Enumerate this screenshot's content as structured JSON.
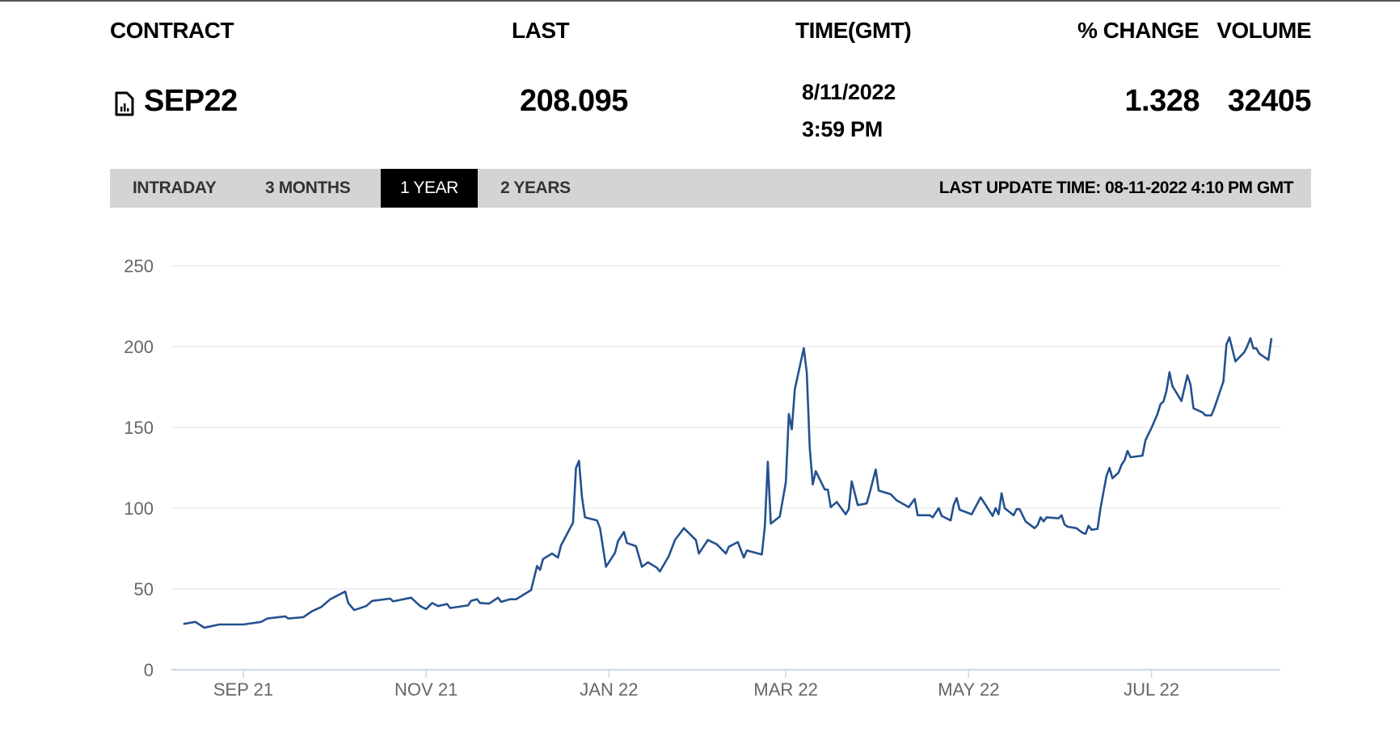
{
  "header": {
    "contract_label": "CONTRACT",
    "last_label": "LAST",
    "time_label": "TIME(GMT)",
    "change_label": "% CHANGE",
    "volume_label": "VOLUME"
  },
  "quote": {
    "contract_icon": "document-chart-icon",
    "contract": "SEP22",
    "last": "208.095",
    "date": "8/11/2022",
    "time": "3:59 PM",
    "change": "1.328",
    "volume": "32405"
  },
  "tabs": [
    {
      "label": "INTRADAY",
      "active": false
    },
    {
      "label": "3 MONTHS",
      "active": false
    },
    {
      "label": "1 YEAR",
      "active": true
    },
    {
      "label": "2 YEARS",
      "active": false
    }
  ],
  "last_update": "LAST UPDATE TIME: 08-11-2022 4:10 PM GMT",
  "colors": {
    "line": "#24518f",
    "grid": "#e6e6e6",
    "axis": "#ccd6eb",
    "tab_bar": "#d4d4d4",
    "tab_active": "#000000"
  },
  "chart_data": {
    "type": "line",
    "title": "",
    "xlabel": "",
    "ylabel": "",
    "grid": true,
    "legend": "none",
    "xlim": [
      "2021-08-08",
      "2022-08-13"
    ],
    "ylim": [
      0,
      250
    ],
    "yticks": [
      0,
      50,
      100,
      150,
      200,
      250
    ],
    "xticks": [
      {
        "date": "2021-09-01",
        "label": "SEP 21"
      },
      {
        "date": "2021-11-01",
        "label": "NOV 21"
      },
      {
        "date": "2022-01-01",
        "label": "JAN 22"
      },
      {
        "date": "2022-03-01",
        "label": "MAR 22"
      },
      {
        "date": "2022-05-01",
        "label": "MAY 22"
      },
      {
        "date": "2022-07-01",
        "label": "JUL 22"
      }
    ],
    "series": [
      {
        "points": [
          [
            "2021-08-12",
            28.3
          ],
          [
            "2021-08-16",
            29.6
          ],
          [
            "2021-08-19",
            26
          ],
          [
            "2021-08-24",
            28
          ],
          [
            "2021-09-01",
            28
          ],
          [
            "2021-09-07",
            29.6
          ],
          [
            "2021-09-09",
            31.7
          ],
          [
            "2021-09-15",
            33
          ],
          [
            "2021-09-16",
            31.7
          ],
          [
            "2021-09-21",
            32.5
          ],
          [
            "2021-09-24",
            36.3
          ],
          [
            "2021-09-27",
            38.8
          ],
          [
            "2021-09-30",
            43.6
          ],
          [
            "2021-10-05",
            48.4
          ],
          [
            "2021-10-06",
            41.3
          ],
          [
            "2021-10-08",
            36.9
          ],
          [
            "2021-10-12",
            39.4
          ],
          [
            "2021-10-14",
            42.6
          ],
          [
            "2021-10-20",
            44
          ],
          [
            "2021-10-21",
            42.3
          ],
          [
            "2021-10-27",
            44.6
          ],
          [
            "2021-10-30",
            39.4
          ],
          [
            "2021-11-01",
            37.5
          ],
          [
            "2021-11-03",
            41.3
          ],
          [
            "2021-11-05",
            39.4
          ],
          [
            "2021-11-08",
            40.7
          ],
          [
            "2021-11-09",
            38.2
          ],
          [
            "2021-11-15",
            39.8
          ],
          [
            "2021-11-16",
            42.6
          ],
          [
            "2021-11-18",
            43.6
          ],
          [
            "2021-11-19",
            41.3
          ],
          [
            "2021-11-22",
            40.9
          ],
          [
            "2021-11-25",
            44.6
          ],
          [
            "2021-11-26",
            42
          ],
          [
            "2021-11-29",
            43.6
          ],
          [
            "2021-12-01",
            43.6
          ],
          [
            "2021-12-04",
            47
          ],
          [
            "2021-12-06",
            49.3
          ],
          [
            "2021-12-08",
            64.2
          ],
          [
            "2021-12-09",
            61.8
          ],
          [
            "2021-12-10",
            68.5
          ],
          [
            "2021-12-13",
            71.9
          ],
          [
            "2021-12-15",
            69.4
          ],
          [
            "2021-12-16",
            77
          ],
          [
            "2021-12-20",
            91
          ],
          [
            "2021-12-21",
            124.9
          ],
          [
            "2021-12-22",
            129.3
          ],
          [
            "2021-12-23",
            106.7
          ],
          [
            "2021-12-24",
            94.3
          ],
          [
            "2021-12-28",
            92.4
          ],
          [
            "2021-12-29",
            87.6
          ],
          [
            "2021-12-31",
            63.7
          ],
          [
            "2022-01-03",
            72.3
          ],
          [
            "2022-01-04",
            79.5
          ],
          [
            "2022-01-06",
            85.3
          ],
          [
            "2022-01-07",
            78.4
          ],
          [
            "2022-01-10",
            76.5
          ],
          [
            "2022-01-12",
            63.7
          ],
          [
            "2022-01-14",
            66.5
          ],
          [
            "2022-01-17",
            63.1
          ],
          [
            "2022-01-18",
            60.8
          ],
          [
            "2022-01-21",
            70.4
          ],
          [
            "2022-01-23",
            80.3
          ],
          [
            "2022-01-26",
            87.6
          ],
          [
            "2022-01-30",
            80.3
          ],
          [
            "2022-01-31",
            71.9
          ],
          [
            "2022-02-03",
            80.3
          ],
          [
            "2022-02-06",
            77.6
          ],
          [
            "2022-02-09",
            71.9
          ],
          [
            "2022-02-10",
            76.1
          ],
          [
            "2022-02-13",
            79
          ],
          [
            "2022-02-15",
            69.4
          ],
          [
            "2022-02-16",
            73.8
          ],
          [
            "2022-02-21",
            71.3
          ],
          [
            "2022-02-22",
            88.5
          ],
          [
            "2022-02-23",
            128.7
          ],
          [
            "2022-02-24",
            90.4
          ],
          [
            "2022-02-27",
            94.8
          ],
          [
            "2022-03-01",
            116
          ],
          [
            "2022-03-02",
            158.3
          ],
          [
            "2022-03-03",
            148.8
          ],
          [
            "2022-03-04",
            173.6
          ],
          [
            "2022-03-07",
            199
          ],
          [
            "2022-03-08",
            184
          ],
          [
            "2022-03-09",
            137
          ],
          [
            "2022-03-10",
            114.7
          ],
          [
            "2022-03-11",
            122.9
          ],
          [
            "2022-03-14",
            111.5
          ],
          [
            "2022-03-15",
            111.5
          ],
          [
            "2022-03-16",
            100.6
          ],
          [
            "2022-03-18",
            103.8
          ],
          [
            "2022-03-21",
            96.2
          ],
          [
            "2022-03-22",
            99.4
          ],
          [
            "2022-03-23",
            116.6
          ],
          [
            "2022-03-25",
            101.9
          ],
          [
            "2022-03-28",
            102.9
          ],
          [
            "2022-03-29",
            109.6
          ],
          [
            "2022-03-31",
            123.9
          ],
          [
            "2022-04-01",
            110.9
          ],
          [
            "2022-04-05",
            108.6
          ],
          [
            "2022-04-07",
            104.8
          ],
          [
            "2022-04-11",
            100.6
          ],
          [
            "2022-04-13",
            105.7
          ],
          [
            "2022-04-14",
            95.6
          ],
          [
            "2022-04-18",
            95.6
          ],
          [
            "2022-04-19",
            94.3
          ],
          [
            "2022-04-21",
            100
          ],
          [
            "2022-04-22",
            95.2
          ],
          [
            "2022-04-25",
            92.4
          ],
          [
            "2022-04-26",
            101.9
          ],
          [
            "2022-04-27",
            106.3
          ],
          [
            "2022-04-28",
            99
          ],
          [
            "2022-05-02",
            96.2
          ],
          [
            "2022-05-05",
            106.7
          ],
          [
            "2022-05-07",
            101
          ],
          [
            "2022-05-09",
            95.2
          ],
          [
            "2022-05-10",
            100
          ],
          [
            "2022-05-11",
            96.2
          ],
          [
            "2022-05-12",
            109.2
          ],
          [
            "2022-05-13",
            100
          ],
          [
            "2022-05-16",
            95.6
          ],
          [
            "2022-05-17",
            99.4
          ],
          [
            "2022-05-18",
            99.4
          ],
          [
            "2022-05-20",
            91.8
          ],
          [
            "2022-05-23",
            87.6
          ],
          [
            "2022-05-24",
            89.5
          ],
          [
            "2022-05-25",
            94.3
          ],
          [
            "2022-05-26",
            91.8
          ],
          [
            "2022-05-27",
            94.3
          ],
          [
            "2022-05-31",
            93.7
          ],
          [
            "2022-06-01",
            95.6
          ],
          [
            "2022-06-02",
            89.9
          ],
          [
            "2022-06-03",
            88.5
          ],
          [
            "2022-06-06",
            87.6
          ],
          [
            "2022-06-08",
            84.7
          ],
          [
            "2022-06-09",
            84.1
          ],
          [
            "2022-06-10",
            89.1
          ],
          [
            "2022-06-11",
            86.6
          ],
          [
            "2022-06-13",
            87.2
          ],
          [
            "2022-06-14",
            100
          ],
          [
            "2022-06-16",
            120
          ],
          [
            "2022-06-17",
            124.9
          ],
          [
            "2022-06-18",
            118.5
          ],
          [
            "2022-06-20",
            122
          ],
          [
            "2022-06-21",
            126.8
          ],
          [
            "2022-06-22",
            129.6
          ],
          [
            "2022-06-23",
            135.4
          ],
          [
            "2022-06-24",
            131.5
          ],
          [
            "2022-06-28",
            132.5
          ],
          [
            "2022-06-29",
            142
          ],
          [
            "2022-07-01",
            149.7
          ],
          [
            "2022-07-03",
            158.3
          ],
          [
            "2022-07-04",
            164.4
          ],
          [
            "2022-07-05",
            166
          ],
          [
            "2022-07-06",
            172.7
          ],
          [
            "2022-07-07",
            184.1
          ],
          [
            "2022-07-08",
            175.5
          ],
          [
            "2022-07-11",
            166.3
          ],
          [
            "2022-07-13",
            182.2
          ],
          [
            "2022-07-14",
            176.5
          ],
          [
            "2022-07-15",
            161.8
          ],
          [
            "2022-07-18",
            159.3
          ],
          [
            "2022-07-19",
            157.4
          ],
          [
            "2022-07-21",
            157.4
          ],
          [
            "2022-07-22",
            162.1
          ],
          [
            "2022-07-25",
            178.4
          ],
          [
            "2022-07-26",
            201.3
          ],
          [
            "2022-07-27",
            205.7
          ],
          [
            "2022-07-29",
            190.8
          ],
          [
            "2022-08-01",
            196.6
          ],
          [
            "2022-08-02",
            200.4
          ],
          [
            "2022-08-03",
            205.2
          ],
          [
            "2022-08-04",
            198.9
          ],
          [
            "2022-08-05",
            198.9
          ],
          [
            "2022-08-06",
            195.6
          ],
          [
            "2022-08-09",
            191.8
          ],
          [
            "2022-08-10",
            205.2
          ]
        ]
      }
    ]
  }
}
